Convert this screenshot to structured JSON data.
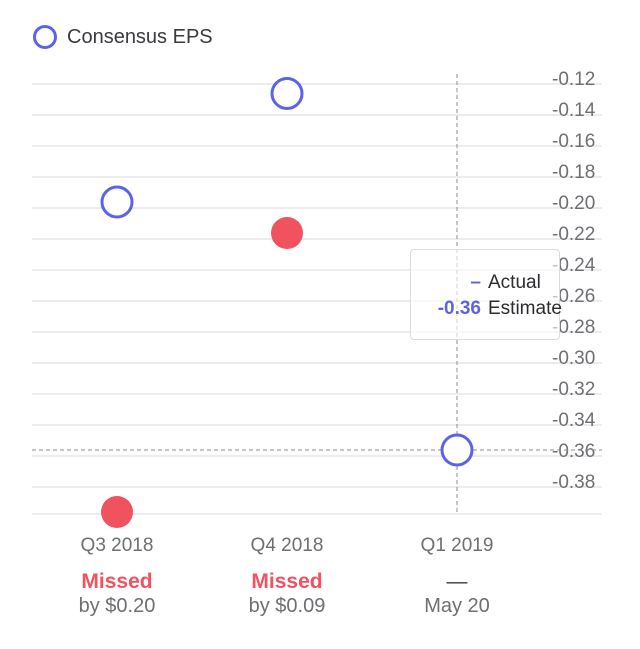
{
  "chart_data": {
    "type": "scatter",
    "legend": {
      "label": "Consensus EPS",
      "placement": "top-left"
    },
    "categories": [
      "Q3 2018",
      "Q4 2018",
      "Q1 2019"
    ],
    "series": [
      {
        "name": "Consensus EPS",
        "style": "hollow",
        "color": "#5b63e6",
        "values": [
          -0.2,
          -0.13,
          -0.36
        ]
      },
      {
        "name": "Actual",
        "style": "filled",
        "color": "#f0525e",
        "values": [
          -0.4,
          -0.22,
          null
        ]
      }
    ],
    "y_ticks": [
      -0.12,
      -0.14,
      -0.16,
      -0.18,
      -0.2,
      -0.22,
      -0.24,
      -0.26,
      -0.28,
      -0.3,
      -0.32,
      -0.34,
      -0.36,
      -0.38
    ],
    "ylim": [
      -0.4,
      -0.11
    ],
    "grid": true,
    "y_axis_side": "right",
    "crosshair": {
      "category": "Q1 2019",
      "value": -0.36
    },
    "colors": {
      "estimate": "#5b63e6",
      "missed": "#f0525e",
      "grid": "#d9d9de",
      "tick_text": "#6e6e73"
    }
  },
  "legend_label": "Consensus EPS",
  "tooltip": {
    "actual_value": "–",
    "actual_label": "Actual",
    "estimate_value": "-0.36",
    "estimate_label": "Estimate"
  },
  "x_categories": [
    {
      "quarter": "Q3 2018",
      "status": "Missed",
      "detail": "by $0.20"
    },
    {
      "quarter": "Q4 2018",
      "status": "Missed",
      "detail": "by $0.09"
    },
    {
      "quarter": "Q1 2019",
      "status": "—",
      "detail": "May 20"
    }
  ]
}
